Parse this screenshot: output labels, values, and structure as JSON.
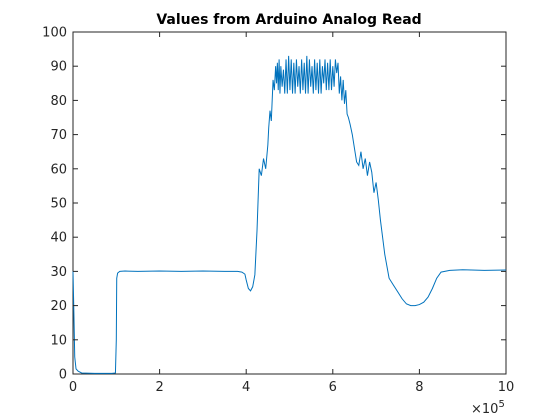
{
  "chart_data": {
    "type": "line",
    "title": "Values from Arduino Analog Read",
    "xlabel": "",
    "ylabel": "",
    "xlim": [
      0,
      1000000
    ],
    "ylim": [
      0,
      100
    ],
    "x_ticks": [
      0,
      200000,
      400000,
      600000,
      800000,
      1000000
    ],
    "x_tick_labels": [
      "0",
      "2",
      "4",
      "6",
      "8",
      "10"
    ],
    "x_exponent_base": "×10",
    "x_exponent_power": "5",
    "y_ticks": [
      0,
      10,
      20,
      30,
      40,
      50,
      60,
      70,
      80,
      90,
      100
    ],
    "y_tick_labels": [
      "0",
      "10",
      "20",
      "30",
      "40",
      "50",
      "60",
      "70",
      "80",
      "90",
      "100"
    ],
    "grid": false,
    "line_color": "#0072BD",
    "series": [
      {
        "x": [
          0,
          2000,
          4000,
          7000,
          12000,
          20000,
          50000,
          90000,
          98000,
          100000,
          101000,
          103000,
          108000,
          120000,
          150000,
          200000,
          250000,
          300000,
          350000,
          380000,
          390000,
          397000,
          400000,
          405000,
          410000,
          415000,
          420000,
          425000,
          430000,
          435000,
          440000,
          445000,
          450000,
          452000,
          455000,
          458000,
          462000,
          465000,
          468000,
          470000,
          472000,
          474000,
          476000,
          478000,
          480000,
          483000,
          486000,
          489000,
          492000,
          495000,
          498000,
          501000,
          504000,
          507000,
          510000,
          513000,
          516000,
          519000,
          522000,
          525000,
          528000,
          531000,
          534000,
          537000,
          540000,
          543000,
          546000,
          549000,
          552000,
          555000,
          558000,
          561000,
          564000,
          567000,
          570000,
          573000,
          576000,
          579000,
          582000,
          585000,
          588000,
          591000,
          594000,
          597000,
          600000,
          603000,
          606000,
          609000,
          612000,
          615000,
          618000,
          621000,
          624000,
          627000,
          630000,
          633000,
          636000,
          640000,
          645000,
          650000,
          655000,
          660000,
          665000,
          670000,
          675000,
          680000,
          685000,
          690000,
          695000,
          700000,
          705000,
          710000,
          720000,
          730000,
          740000,
          750000,
          760000,
          770000,
          780000,
          790000,
          800000,
          810000,
          820000,
          830000,
          840000,
          850000,
          870000,
          900000,
          950000,
          1000000
        ],
        "y": [
          30,
          18,
          5,
          1.5,
          0.8,
          0.3,
          0.2,
          0.2,
          0.3,
          10,
          28,
          29.5,
          30,
          30.1,
          30,
          30.1,
          30,
          30.1,
          30,
          30,
          29.8,
          29.2,
          27.5,
          25,
          24.3,
          25.5,
          29,
          42,
          60,
          58,
          63,
          60,
          67,
          72,
          77,
          74,
          86,
          83,
          90,
          85,
          91,
          83,
          92,
          82,
          90,
          84,
          89,
          82,
          92,
          82,
          93,
          83,
          92,
          82,
          91,
          82,
          92,
          84,
          90,
          82,
          92,
          83,
          91,
          82,
          93,
          82,
          92,
          84,
          90,
          82,
          92,
          83,
          91,
          82,
          92,
          82,
          90,
          85,
          92,
          83,
          91,
          83,
          92,
          83,
          90,
          84,
          92,
          88,
          91,
          82,
          87,
          80,
          86,
          79,
          83,
          76,
          75,
          73,
          70,
          66,
          62,
          61,
          65,
          60,
          63,
          58,
          62,
          59,
          53,
          56,
          51,
          45,
          35,
          28,
          26,
          24,
          22,
          20.5,
          20,
          20,
          20.3,
          21,
          22.5,
          25,
          28,
          29.8,
          30.3,
          30.5,
          30.3,
          30.4
        ]
      }
    ]
  }
}
